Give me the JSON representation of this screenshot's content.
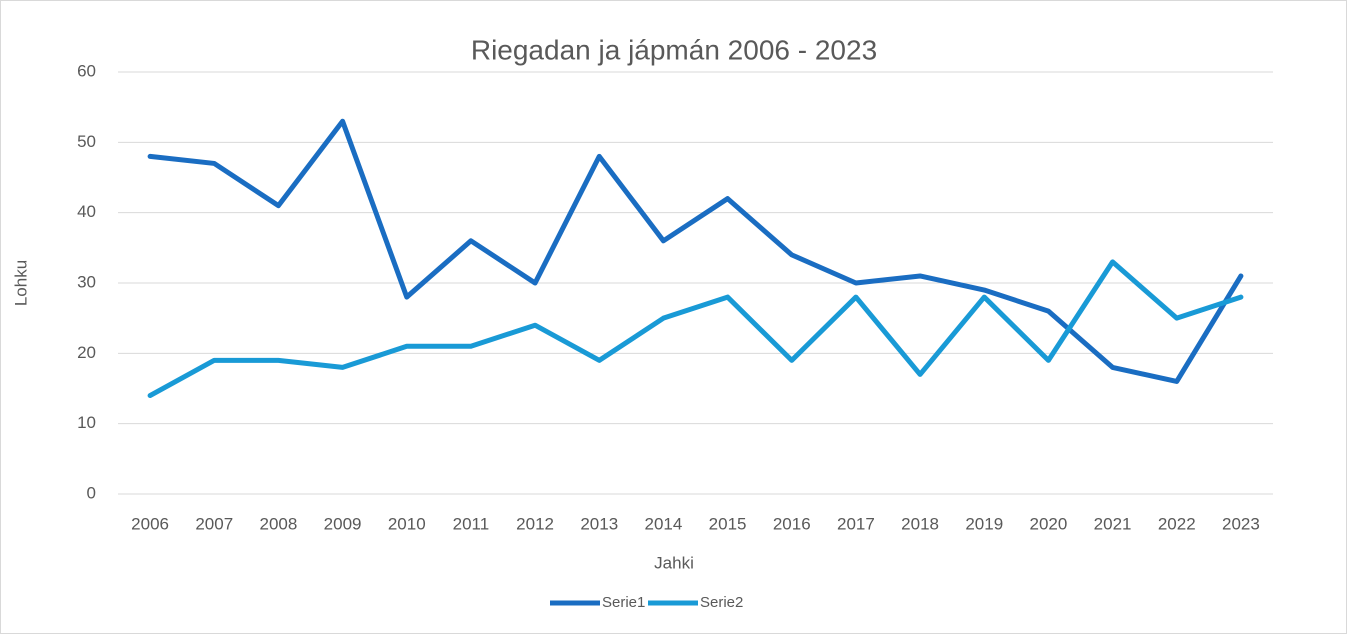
{
  "chart_data": {
    "type": "line",
    "title": "Riegadan ja jápmán 2006 - 2023",
    "x_label": "Jahki",
    "y_label": "Lohku",
    "categories": [
      "2006",
      "2007",
      "2008",
      "2009",
      "2010",
      "2011",
      "2012",
      "2013",
      "2014",
      "2015",
      "2016",
      "2017",
      "2018",
      "2019",
      "2020",
      "2021",
      "2022",
      "2023"
    ],
    "series": [
      {
        "name": "Serie1",
        "color": "#1a6dc2",
        "values": [
          48,
          47,
          41,
          53,
          28,
          36,
          30,
          48,
          36,
          42,
          34,
          30,
          31,
          29,
          26,
          18,
          16,
          31
        ]
      },
      {
        "name": "Serie2",
        "color": "#199ad6",
        "values": [
          14,
          19,
          19,
          18,
          21,
          21,
          24,
          19,
          25,
          28,
          19,
          28,
          17,
          28,
          19,
          33,
          25,
          28
        ]
      }
    ],
    "ylim": [
      0,
      60
    ],
    "yticks": [
      0,
      10,
      20,
      30,
      40,
      50,
      60
    ],
    "grid": true,
    "legend": "bottom"
  }
}
